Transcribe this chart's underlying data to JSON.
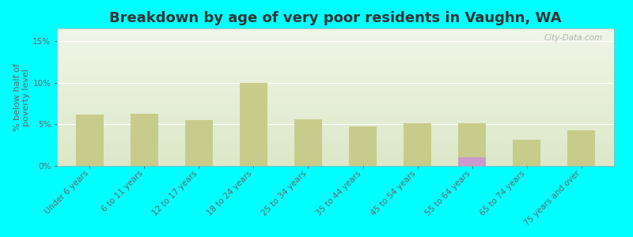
{
  "title": "Breakdown by age of very poor residents in Vaughn, WA",
  "ylabel": "% below half of\npoverty level",
  "categories": [
    "Under 6 years",
    "6 to 11 years",
    "12 to 17 years",
    "18 to 24 years",
    "25 to 34 years",
    "35 to 44 years",
    "45 to 54 years",
    "55 to 64 years",
    "65 to 74 years",
    "75 years and over"
  ],
  "vaughn_values": [
    0,
    0,
    0,
    0,
    0,
    0,
    0,
    1.0,
    0,
    0
  ],
  "washington_values": [
    6.2,
    6.3,
    5.5,
    10.0,
    5.6,
    4.7,
    5.1,
    5.1,
    3.1,
    4.3
  ],
  "vaughn_color": "#cc99cc",
  "washington_color": "#c8cc8a",
  "background_color": "#00ffff",
  "plot_bg_top": "#dce8c8",
  "plot_bg_bottom": "#f0f5e8",
  "ylim": [
    0,
    16.5
  ],
  "yticks": [
    0,
    5,
    10,
    15
  ],
  "ytick_labels": [
    "0%",
    "5%",
    "10%",
    "15%"
  ],
  "title_fontsize": 13,
  "axis_label_fontsize": 8,
  "tick_label_fontsize": 7.5,
  "legend_fontsize": 9,
  "bar_width": 0.5,
  "watermark": "City-Data.com"
}
